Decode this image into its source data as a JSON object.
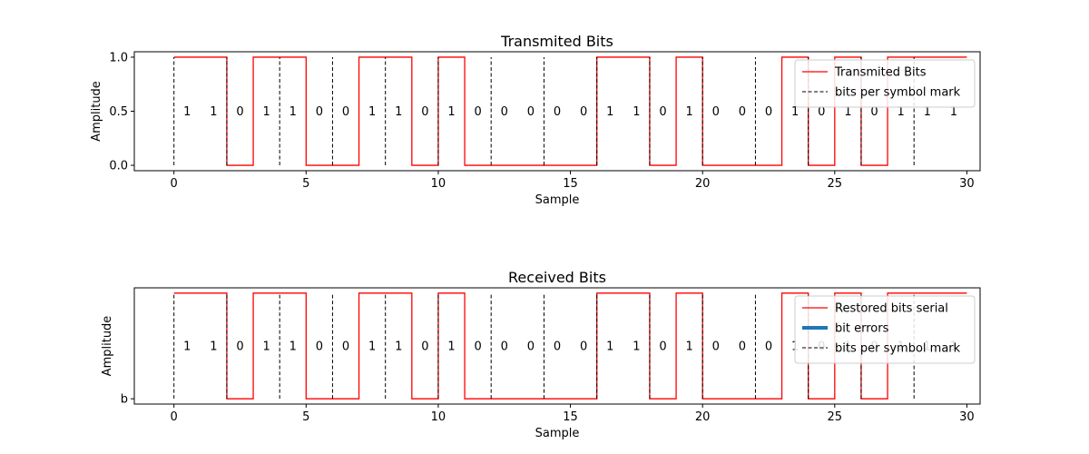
{
  "chart_data": [
    {
      "type": "line",
      "title": "Transmited Bits",
      "xlabel": "Sample",
      "ylabel": "Amplitude",
      "xlim": [
        -1.5,
        30.5
      ],
      "ylim": [
        -0.05,
        1.05
      ],
      "xticks": [
        0,
        5,
        10,
        15,
        20,
        25,
        30
      ],
      "yticks": [
        0.0,
        0.5,
        1.0
      ],
      "ytick_labels": [
        "0.0",
        "0.5",
        "1.0"
      ],
      "signal_color": "#ff0000",
      "mark_color": "#000000",
      "series": [
        {
          "name": "Transmited Bits",
          "style": "step-post",
          "x": [
            0,
            1,
            2,
            3,
            4,
            5,
            6,
            7,
            8,
            9,
            10,
            11,
            12,
            13,
            14,
            15,
            16,
            17,
            18,
            19,
            20,
            21,
            22,
            23,
            24,
            25,
            26,
            27,
            28,
            29
          ],
          "y": [
            1,
            1,
            0,
            1,
            1,
            0,
            0,
            1,
            1,
            0,
            1,
            0,
            0,
            0,
            0,
            0,
            1,
            1,
            0,
            1,
            0,
            0,
            0,
            1,
            0,
            1,
            0,
            1,
            1,
            1
          ]
        },
        {
          "name": "bits per symbol mark",
          "style": "vlines-dashed",
          "x": [
            0,
            2,
            4,
            6,
            8,
            10,
            12,
            14,
            16,
            18,
            20,
            22,
            24,
            26,
            28
          ]
        }
      ],
      "annotations": {
        "x": [
          0.5,
          1.5,
          2.5,
          3.5,
          4.5,
          5.5,
          6.5,
          7.5,
          8.5,
          9.5,
          10.5,
          11.5,
          12.5,
          13.5,
          14.5,
          15.5,
          16.5,
          17.5,
          18.5,
          19.5,
          20.5,
          21.5,
          22.5,
          23.5,
          24.5,
          25.5,
          26.5,
          27.5,
          28.5,
          29.5
        ],
        "y": 0.5,
        "text": [
          "1",
          "1",
          "0",
          "1",
          "1",
          "0",
          "0",
          "1",
          "1",
          "0",
          "1",
          "0",
          "0",
          "0",
          "0",
          "0",
          "1",
          "1",
          "0",
          "1",
          "0",
          "0",
          "0",
          "1",
          "0",
          "1",
          "0",
          "1",
          "1",
          "1"
        ]
      },
      "legend": {
        "placement": "top-right",
        "entries": [
          {
            "label": "Transmited Bits",
            "kind": "line-red"
          },
          {
            "label": "bits per symbol mark",
            "kind": "dashed-black"
          }
        ]
      }
    },
    {
      "type": "line",
      "title": "Received Bits",
      "xlabel": "Sample",
      "ylabel": "Amplitude",
      "xlim": [
        -1.5,
        30.5
      ],
      "ylim": [
        -0.05,
        1.05
      ],
      "xticks": [
        0,
        5,
        10,
        15,
        20,
        25,
        30
      ],
      "yticks": [
        0.0
      ],
      "ytick_labels": [
        "b"
      ],
      "signal_color": "#ff0000",
      "mark_color": "#000000",
      "error_color": "#1f77b4",
      "series": [
        {
          "name": "Restored bits serial",
          "style": "step-post",
          "x": [
            0,
            1,
            2,
            3,
            4,
            5,
            6,
            7,
            8,
            9,
            10,
            11,
            12,
            13,
            14,
            15,
            16,
            17,
            18,
            19,
            20,
            21,
            22,
            23,
            24,
            25,
            26,
            27,
            28,
            29
          ],
          "y": [
            1,
            1,
            0,
            1,
            1,
            0,
            0,
            1,
            1,
            0,
            1,
            0,
            0,
            0,
            0,
            0,
            1,
            1,
            0,
            1,
            0,
            0,
            0,
            1,
            0,
            1,
            0,
            1,
            1,
            1
          ]
        },
        {
          "name": "bit errors",
          "style": "thick-line",
          "x": [],
          "y": []
        },
        {
          "name": "bits per symbol mark",
          "style": "vlines-dashed",
          "x": [
            0,
            2,
            4,
            6,
            8,
            10,
            12,
            14,
            16,
            18,
            20,
            22,
            24,
            26,
            28
          ]
        }
      ],
      "annotations": {
        "x": [
          0.5,
          1.5,
          2.5,
          3.5,
          4.5,
          5.5,
          6.5,
          7.5,
          8.5,
          9.5,
          10.5,
          11.5,
          12.5,
          13.5,
          14.5,
          15.5,
          16.5,
          17.5,
          18.5,
          19.5,
          20.5,
          21.5,
          22.5,
          23.5,
          24.5,
          25.5,
          26.5,
          27.5,
          28.5,
          29.5
        ],
        "y": 0.5,
        "text": [
          "1",
          "1",
          "0",
          "1",
          "1",
          "0",
          "0",
          "1",
          "1",
          "0",
          "1",
          "0",
          "0",
          "0",
          "0",
          "0",
          "1",
          "1",
          "0",
          "1",
          "0",
          "0",
          "0",
          "1",
          "0",
          "1",
          "0",
          "1",
          "1",
          "1"
        ]
      },
      "legend": {
        "placement": "top-right",
        "entries": [
          {
            "label": "Restored bits serial",
            "kind": "line-red"
          },
          {
            "label": "bit errors",
            "kind": "thick-blue"
          },
          {
            "label": "bits per symbol mark",
            "kind": "dashed-black"
          }
        ]
      }
    }
  ]
}
